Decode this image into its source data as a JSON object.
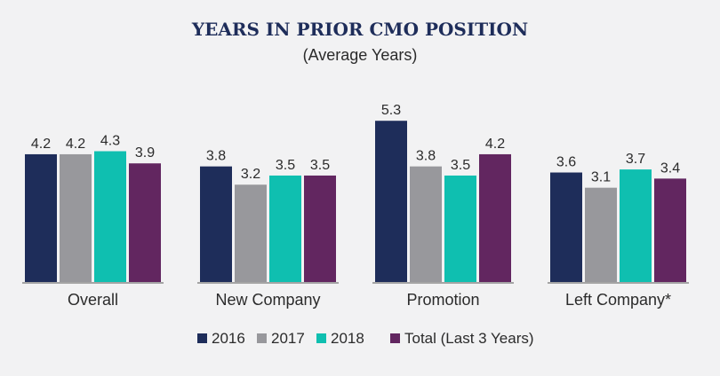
{
  "chart_data": {
    "type": "bar",
    "title": "YEARS IN PRIOR CMO POSITION",
    "subtitle": "(Average Years)",
    "categories": [
      "Overall",
      "New Company",
      "Promotion",
      "Left Company*"
    ],
    "series": [
      {
        "name": "2016",
        "color": "#1e2d5a",
        "values": [
          4.2,
          3.8,
          5.3,
          3.6
        ]
      },
      {
        "name": "2017",
        "color": "#98989c",
        "values": [
          4.2,
          3.2,
          3.8,
          3.1
        ]
      },
      {
        "name": "2018",
        "color": "#0fbfb0",
        "values": [
          4.3,
          3.5,
          3.5,
          3.7
        ]
      },
      {
        "name": "Total (Last 3 Years)",
        "color": "#622660",
        "values": [
          3.9,
          3.5,
          4.2,
          3.4
        ]
      }
    ],
    "ylim": [
      0,
      6
    ],
    "xlabel": "",
    "ylabel": "",
    "grid": false,
    "legend_position": "bottom",
    "axis_color": "#8a8a8a"
  }
}
